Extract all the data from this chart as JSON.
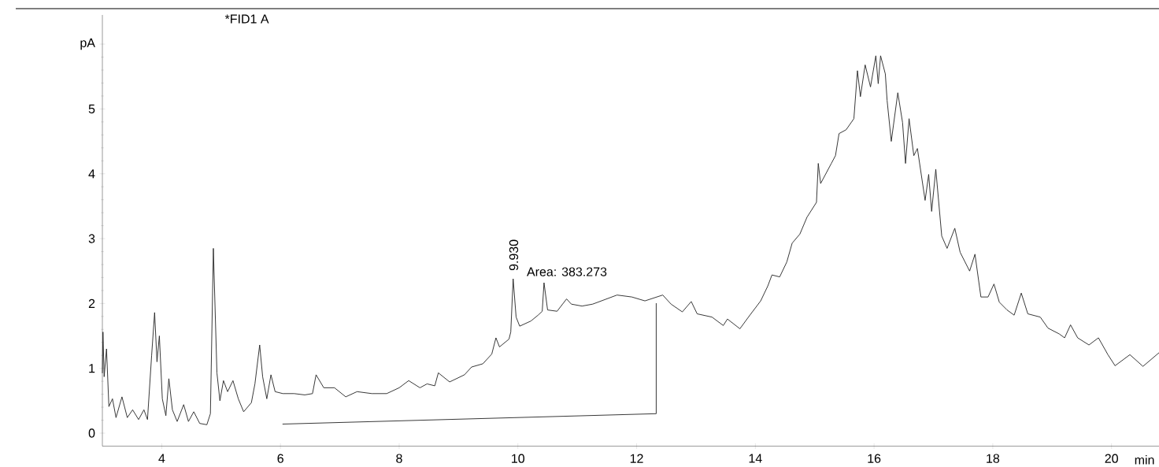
{
  "chart_data": {
    "type": "line",
    "title": "*FID1 A",
    "xlabel": "min",
    "xlim": [
      3,
      20.8
    ],
    "ylim": [
      -0.2,
      6.45
    ],
    "xticks": [
      4,
      6,
      8,
      10,
      12,
      14,
      16,
      18,
      20
    ],
    "yticks": [
      0,
      1,
      2,
      3,
      4,
      5,
      {
        "value": 6,
        "label": "pA"
      }
    ],
    "marker": "none",
    "line_style": "solid",
    "annotations": [
      {
        "text": "9.930",
        "x": 9.93,
        "y": 2.38
      },
      "Area: 383.273"
    ],
    "series": [
      {
        "color": "#222222",
        "x": [
          3.0,
          3.01,
          3.03,
          3.07,
          3.11,
          3.17,
          3.23,
          3.33,
          3.42,
          3.51,
          3.61,
          3.7,
          3.76,
          3.83,
          3.88,
          3.92,
          3.96,
          4.01,
          4.07,
          4.12,
          4.18,
          4.26,
          4.37,
          4.45,
          4.54,
          4.64,
          4.76,
          4.82,
          4.87,
          4.93,
          4.98,
          5.04,
          5.11,
          5.2,
          5.29,
          5.38,
          5.51,
          5.57,
          5.65,
          5.7,
          5.77,
          5.84,
          5.91,
          6.04,
          6.23,
          6.41,
          6.54,
          6.6,
          6.73,
          6.91,
          7.1,
          7.29,
          7.54,
          7.79,
          8.0,
          8.16,
          8.35,
          8.47,
          8.6,
          8.66,
          8.85,
          9.1,
          9.22,
          9.41,
          9.56,
          9.63,
          9.69,
          9.85,
          9.88,
          9.92,
          9.97,
          10.03,
          10.22,
          10.34,
          10.41,
          10.44,
          10.5,
          10.66,
          10.82,
          10.9,
          11.08,
          11.26,
          11.67,
          11.92,
          12.14,
          12.44,
          12.58,
          12.77,
          12.92,
          13.02,
          13.27,
          13.46,
          13.53,
          13.74,
          13.9,
          14.09,
          14.21,
          14.28,
          14.41,
          14.53,
          14.62,
          14.75,
          14.87,
          15.03,
          15.06,
          15.1,
          15.28,
          15.35,
          15.41,
          15.53,
          15.66,
          15.72,
          15.77,
          15.85,
          15.94,
          16.03,
          16.07,
          16.11,
          16.19,
          16.22,
          16.29,
          16.4,
          16.48,
          16.53,
          16.59,
          16.67,
          16.73,
          16.86,
          16.92,
          16.97,
          17.04,
          17.14,
          17.23,
          17.36,
          17.45,
          17.61,
          17.7,
          17.8,
          17.92,
          18.02,
          18.11,
          18.24,
          18.36,
          18.48,
          18.59,
          18.8,
          18.93,
          19.12,
          19.21,
          19.31,
          19.43,
          19.62,
          19.78,
          19.94,
          20.06,
          20.31,
          20.53,
          20.8
        ],
        "values": [
          0.93,
          1.56,
          0.87,
          1.3,
          0.41,
          0.53,
          0.24,
          0.56,
          0.24,
          0.36,
          0.21,
          0.36,
          0.21,
          1.2,
          1.86,
          1.1,
          1.5,
          0.53,
          0.27,
          0.84,
          0.36,
          0.18,
          0.44,
          0.18,
          0.33,
          0.15,
          0.13,
          0.3,
          2.85,
          0.93,
          0.5,
          0.81,
          0.64,
          0.81,
          0.53,
          0.33,
          0.47,
          0.76,
          1.36,
          0.87,
          0.53,
          0.9,
          0.64,
          0.61,
          0.61,
          0.59,
          0.61,
          0.9,
          0.7,
          0.7,
          0.56,
          0.64,
          0.61,
          0.61,
          0.7,
          0.81,
          0.7,
          0.76,
          0.73,
          0.93,
          0.79,
          0.9,
          1.02,
          1.07,
          1.22,
          1.47,
          1.33,
          1.45,
          1.56,
          2.38,
          1.79,
          1.65,
          1.73,
          1.82,
          1.88,
          2.32,
          1.9,
          1.88,
          2.07,
          1.99,
          1.96,
          1.99,
          2.13,
          2.1,
          2.04,
          2.13,
          1.99,
          1.87,
          2.03,
          1.84,
          1.79,
          1.66,
          1.76,
          1.61,
          1.81,
          2.04,
          2.27,
          2.44,
          2.41,
          2.64,
          2.93,
          3.07,
          3.33,
          3.56,
          4.16,
          3.85,
          4.16,
          4.28,
          4.62,
          4.68,
          4.85,
          5.59,
          5.19,
          5.68,
          5.34,
          5.82,
          5.39,
          5.82,
          5.54,
          5.13,
          4.5,
          5.25,
          4.79,
          4.16,
          4.85,
          4.28,
          4.39,
          3.59,
          3.99,
          3.42,
          4.07,
          3.04,
          2.85,
          3.16,
          2.79,
          2.5,
          2.76,
          2.1,
          2.1,
          2.3,
          2.02,
          1.9,
          1.82,
          2.16,
          1.84,
          1.79,
          1.62,
          1.53,
          1.47,
          1.67,
          1.47,
          1.36,
          1.47,
          1.21,
          1.04,
          1.21,
          1.03,
          1.24
        ]
      },
      {
        "type": "line",
        "color": "#222222",
        "x": [
          6.04,
          12.33,
          12.33
        ],
        "values": [
          0.14,
          0.3,
          2.0
        ]
      }
    ]
  }
}
